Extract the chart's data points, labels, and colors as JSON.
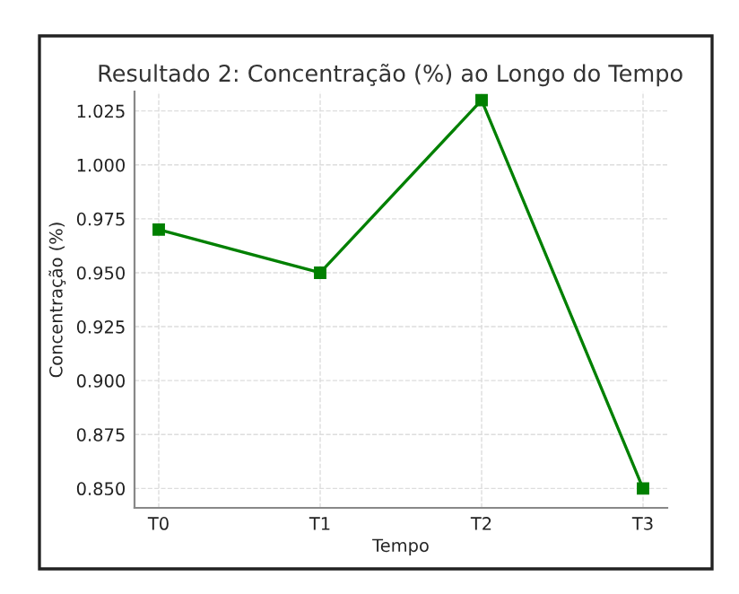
{
  "chart_data": {
    "type": "line",
    "title": "Resultado 2: Concentração (%) ao Longo do Tempo",
    "xlabel": "Tempo",
    "ylabel": "Concentração (%)",
    "categories": [
      "T0",
      "T1",
      "T2",
      "T3"
    ],
    "series": [
      {
        "color": "#008000",
        "values": [
          0.97,
          0.95,
          1.03,
          0.85
        ]
      }
    ],
    "ylim": [
      0.841,
      1.034
    ],
    "yticks": [
      {
        "value": 0.85,
        "label": "0.850"
      },
      {
        "value": 0.875,
        "label": "0.875"
      },
      {
        "value": 0.9,
        "label": "0.900"
      },
      {
        "value": 0.925,
        "label": "0.925"
      },
      {
        "value": 0.95,
        "label": "0.950"
      },
      {
        "value": 0.975,
        "label": "0.975"
      },
      {
        "value": 1.0,
        "label": "1.000"
      },
      {
        "value": 1.025,
        "label": "1.025"
      }
    ],
    "grid": true,
    "marker": "square",
    "line_style": "solid",
    "legend": false
  }
}
